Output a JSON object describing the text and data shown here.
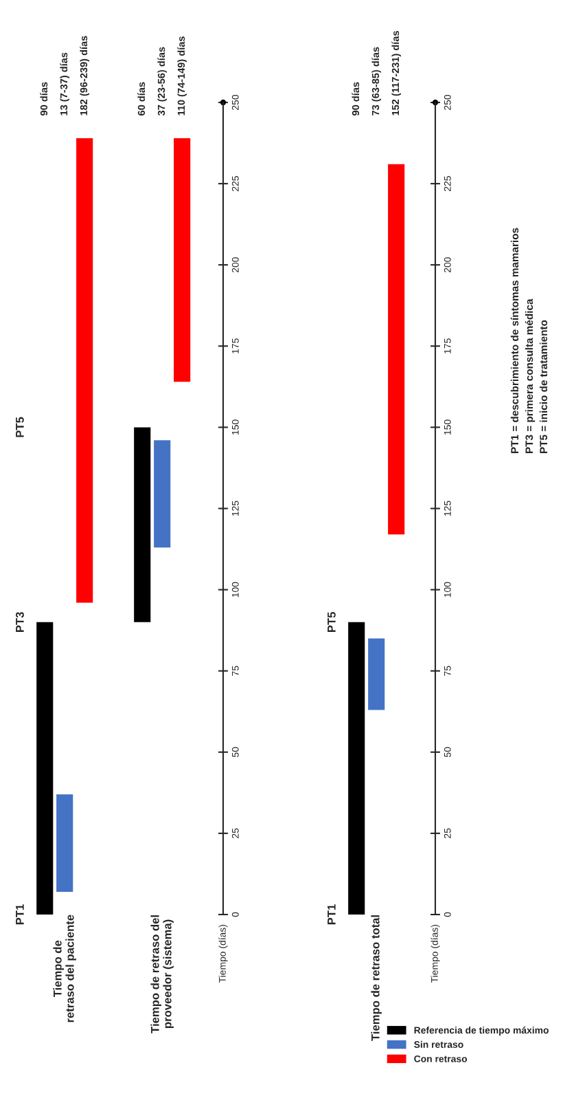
{
  "chart_data": [
    {
      "type": "bar",
      "categories": [
        "Tiempo de\nretraso del paciente",
        "Tiempo de retraso del\nproveedor (sistema)"
      ],
      "ylabel": "Tiempo (días)",
      "ylim": [
        0,
        250
      ],
      "yticks": [
        0,
        25,
        50,
        75,
        100,
        125,
        150,
        175,
        200,
        225,
        250
      ],
      "series": [
        {
          "color": "#000000",
          "base": [
            0,
            90
          ],
          "values": [
            90,
            60
          ]
        },
        {
          "color": "#4472c4",
          "base": [
            7,
            113
          ],
          "values": [
            30,
            33
          ]
        },
        {
          "color": "#ff0000",
          "base": [
            96,
            164
          ],
          "values": [
            143,
            75
          ]
        }
      ],
      "annotations": [
        "90 días",
        "13 (7-37) días",
        "182 (96-239) días",
        "60 días",
        "37 (23-56) días",
        "110 (74-149) días",
        "PT1",
        "PT3",
        "PT5"
      ]
    },
    {
      "type": "bar",
      "categories": [
        "Tiempo de retraso total"
      ],
      "ylabel": "Tiempo (días)",
      "ylim": [
        0,
        250
      ],
      "yticks": [
        0,
        25,
        50,
        75,
        100,
        125,
        150,
        175,
        200,
        225,
        250
      ],
      "legend": "bottom right",
      "series": [
        {
          "name": "Referencia de tiempo máximo",
          "color": "#000000",
          "base": [
            0
          ],
          "values": [
            90
          ]
        },
        {
          "name": "Sin retraso",
          "color": "#4472c4",
          "base": [
            63
          ],
          "values": [
            22
          ]
        },
        {
          "name": "Con retraso",
          "color": "#ff0000",
          "base": [
            117
          ],
          "values": [
            114
          ]
        }
      ],
      "annotations": [
        "90 días",
        "73 (63-85) días",
        "152 (117-231) días",
        "PT1",
        "PT5",
        "PT1 = descubrimiento de síntomas mamarios",
        "PT3 = primera consulta médica",
        "PT5 = inicio de tratamiento"
      ]
    }
  ]
}
